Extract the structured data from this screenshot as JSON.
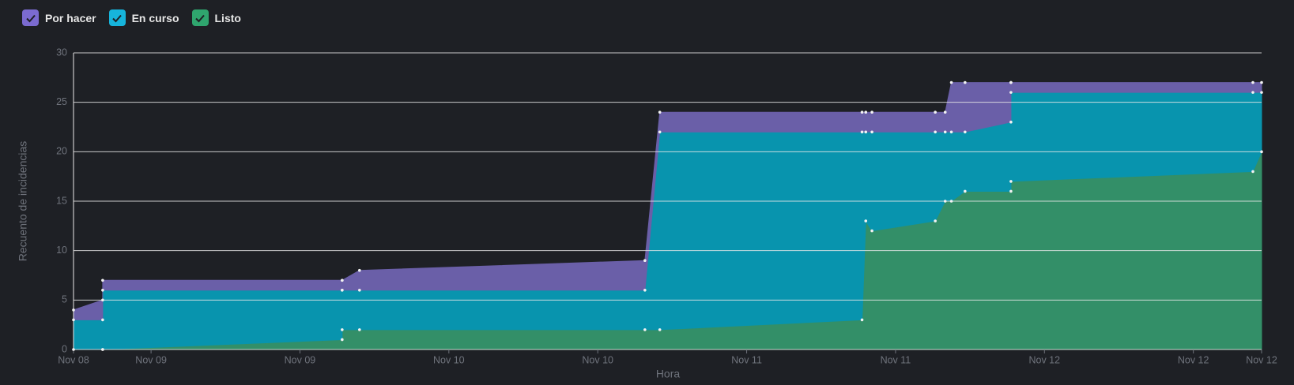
{
  "chart_data": {
    "type": "stacked-area",
    "x_label": "Hora",
    "y_label": "Recuento de incidencias",
    "x": [
      -6.25,
      -3.9,
      -3.9,
      15.4,
      15.4,
      16.8,
      39.8,
      41.0,
      57.3,
      57.6,
      58.1,
      63.2,
      64.0,
      64.5,
      65.6,
      69.3,
      69.3,
      88.8,
      89.5
    ],
    "series": [
      {
        "name": "Por hacer",
        "color": "#7b6bd0",
        "fill": "#6a5fa8",
        "values": [
          1,
          2,
          1,
          1,
          1,
          2,
          3,
          2,
          2,
          2,
          2,
          2,
          2,
          5,
          5,
          4,
          1,
          1,
          1
        ]
      },
      {
        "name": "En curso",
        "color": "#16b4dc",
        "fill": "#0894ae",
        "values": [
          3,
          3,
          6,
          5,
          4,
          4,
          4,
          20,
          19,
          9,
          10,
          9,
          7,
          7,
          6,
          7,
          9,
          8,
          6
        ]
      },
      {
        "name": "Listo",
        "color": "#2fa56e",
        "fill": "#338f68",
        "values": [
          0,
          0,
          0,
          1,
          2,
          2,
          2,
          2,
          3,
          13,
          12,
          13,
          15,
          15,
          16,
          16,
          17,
          18,
          20
        ]
      }
    ],
    "xlim": [
      -6.25,
      89.5
    ],
    "xticks": [
      {
        "value": -6.25,
        "label": "Nov 08"
      },
      {
        "value": 0,
        "label": "Nov 09"
      },
      {
        "value": 12,
        "label": "Nov 09"
      },
      {
        "value": 24,
        "label": "Nov 10"
      },
      {
        "value": 36,
        "label": "Nov 10"
      },
      {
        "value": 48,
        "label": "Nov 11"
      },
      {
        "value": 60,
        "label": "Nov 11"
      },
      {
        "value": 72,
        "label": "Nov 12"
      },
      {
        "value": 84,
        "label": "Nov 12"
      },
      {
        "value": 89.5,
        "label": "Nov 12"
      }
    ],
    "ylim": [
      0,
      30
    ],
    "yticks": [
      0,
      5,
      10,
      15,
      20,
      25,
      30
    ],
    "grid": true
  }
}
